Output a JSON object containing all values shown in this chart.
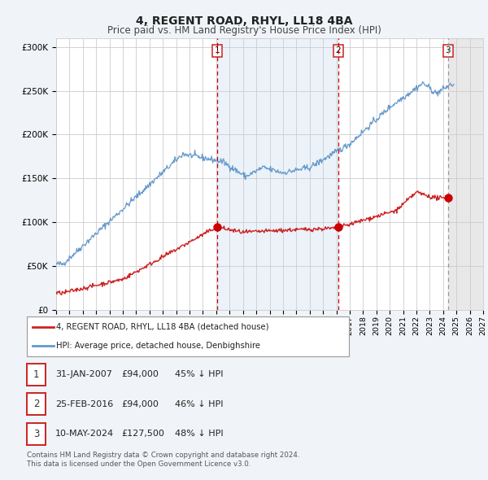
{
  "title": "4, REGENT ROAD, RHYL, LL18 4BA",
  "subtitle": "Price paid vs. HM Land Registry's House Price Index (HPI)",
  "title_fontsize": 10,
  "subtitle_fontsize": 8.5,
  "ylim": [
    0,
    310000
  ],
  "xlim_start": 1995.0,
  "xlim_end": 2027.0,
  "y_ticks": [
    0,
    50000,
    100000,
    150000,
    200000,
    250000,
    300000
  ],
  "y_tick_labels": [
    "£0",
    "£50K",
    "£100K",
    "£150K",
    "£200K",
    "£250K",
    "£300K"
  ],
  "grid_color": "#cccccc",
  "background_color": "#f0f4f8",
  "plot_bg_color": "#ffffff",
  "hpi_line_color": "#6699cc",
  "price_line_color": "#cc2222",
  "hpi_fill_color": "#ddeeff",
  "sale_marker_color": "#cc0000",
  "vertical_line_color": "#cc0000",
  "sale_1_year": 2007.083,
  "sale_1_price": 94000,
  "sale_1_label": "31-JAN-2007",
  "sale_1_pct": "45% ↓ HPI",
  "sale_2_year": 2016.15,
  "sale_2_price": 94000,
  "sale_2_label": "25-FEB-2016",
  "sale_2_pct": "46% ↓ HPI",
  "sale_3_year": 2024.37,
  "sale_3_price": 127500,
  "sale_3_label": "10-MAY-2024",
  "sale_3_pct": "48% ↓ HPI",
  "legend_line1": "4, REGENT ROAD, RHYL, LL18 4BA (detached house)",
  "legend_line2": "HPI: Average price, detached house, Denbighshire",
  "footer_line1": "Contains HM Land Registry data © Crown copyright and database right 2024.",
  "footer_line2": "This data is licensed under the Open Government Licence v3.0.",
  "hatch_start": 2024.37,
  "hatch_end": 2027.0,
  "shade_start": 2007.083,
  "shade_end": 2016.15
}
